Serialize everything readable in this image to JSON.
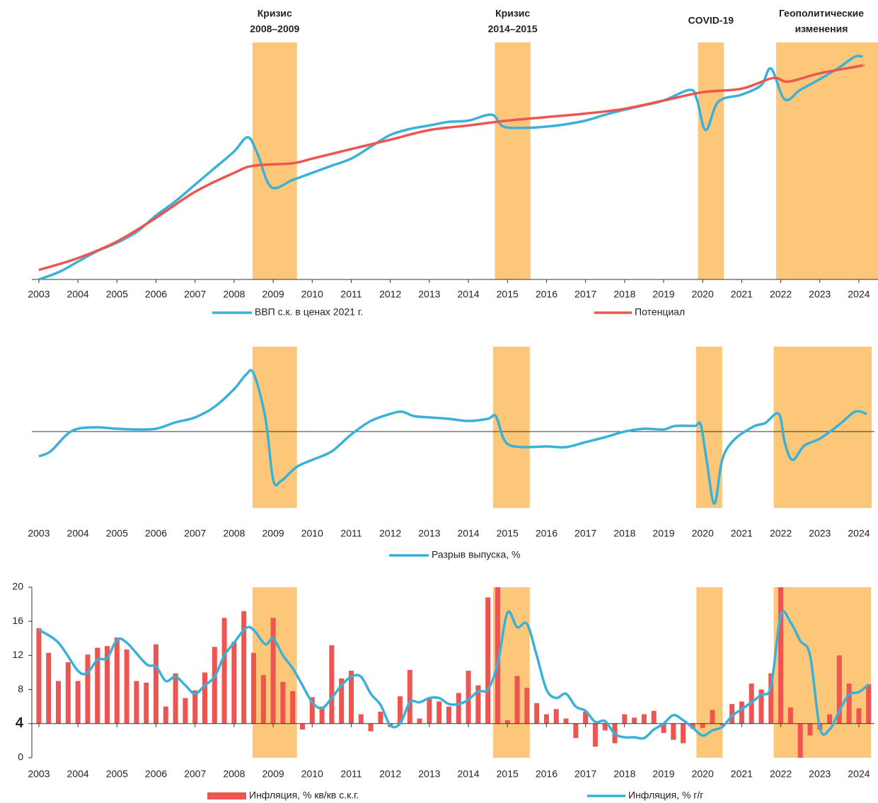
{
  "chart_data": [
    {
      "type": "line",
      "xlim": [
        2002.82,
        2024.49
      ],
      "xticks": [
        2003,
        2004,
        2005,
        2006,
        2007,
        2008,
        2009,
        2010,
        2011,
        2012,
        2013,
        2014,
        2015,
        2016,
        2017,
        2018,
        2019,
        2020,
        2021,
        2022,
        2023,
        2024
      ],
      "ylim": [
        0,
        100
      ],
      "bands": [
        {
          "label": [
            "Кризис",
            "2008–2009"
          ],
          "x": [
            2008.47,
            2009.61
          ]
        },
        {
          "label": [
            "Кризис",
            "2014–2015"
          ],
          "x": [
            2014.68,
            2015.59
          ]
        },
        {
          "label": [
            "COVID-19"
          ],
          "x": [
            2019.88,
            2020.54
          ]
        },
        {
          "label": [
            "Геополитические",
            "изменения"
          ],
          "x": [
            2021.88,
            2024.49
          ]
        }
      ],
      "band_color": "#fdc77a",
      "series": [
        {
          "name": "ВВП с.к. в ценах 2021 г.",
          "color": "#3ab1d8",
          "x": [
            2003,
            2003.5,
            2004,
            2004.5,
            2005,
            2005.5,
            2006,
            2006.5,
            2007,
            2007.5,
            2008,
            2008.35,
            2008.6,
            2008.95,
            2009.5,
            2010,
            2010.5,
            2011,
            2011.5,
            2012,
            2012.5,
            2013,
            2013.5,
            2014,
            2014.6,
            2014.9,
            2015.5,
            2016,
            2016.5,
            2017,
            2017.5,
            2018,
            2018.5,
            2019,
            2019.67,
            2019.85,
            2020.08,
            2020.4,
            2021,
            2021.5,
            2021.75,
            2022.1,
            2022.5,
            2023,
            2023.5,
            2023.9,
            2024.1
          ],
          "values": [
            0,
            3,
            7.5,
            12,
            15.5,
            20,
            27,
            33,
            40,
            47,
            54,
            60,
            53,
            39,
            42,
            45,
            48,
            51,
            56,
            61,
            63.5,
            65,
            66.5,
            67,
            69.5,
            64.5,
            64,
            64.5,
            65.5,
            67,
            69.5,
            71.6,
            73.5,
            75.5,
            80,
            76,
            63,
            75,
            78,
            82,
            89,
            76,
            80,
            84.5,
            89.5,
            94,
            94
          ]
        },
        {
          "name": "Потенциал",
          "color": "#ee5450",
          "x": [
            2003,
            2004,
            2005,
            2006,
            2007,
            2008,
            2008.5,
            2009.5,
            2010,
            2011,
            2012,
            2013,
            2014,
            2015,
            2016,
            2017,
            2018,
            2019,
            2020,
            2021,
            2021.8,
            2022.2,
            2023,
            2024,
            2024.1
          ],
          "values": [
            4,
            9,
            16,
            26,
            37,
            45,
            48,
            49,
            51,
            55,
            59,
            63,
            65,
            67,
            68.5,
            70,
            72,
            75.5,
            79,
            80.5,
            85,
            83.5,
            87,
            90,
            90.5
          ]
        }
      ],
      "legend": "bottom"
    },
    {
      "type": "line",
      "xlim": [
        2002.82,
        2024.49
      ],
      "xticks": [
        2003,
        2004,
        2005,
        2006,
        2007,
        2008,
        2009,
        2010,
        2011,
        2012,
        2013,
        2014,
        2015,
        2016,
        2017,
        2018,
        2019,
        2020,
        2021,
        2022,
        2023,
        2024
      ],
      "ylim": [
        -5.4,
        6
      ],
      "bands": [
        {
          "x": [
            2008.47,
            2009.61
          ]
        },
        {
          "x": [
            2014.63,
            2015.57
          ]
        },
        {
          "x": [
            2019.83,
            2020.5
          ]
        },
        {
          "x": [
            2021.82,
            2024.33
          ]
        }
      ],
      "band_color": "#fdc77a",
      "series": [
        {
          "name": "Разрыв выпуска, %",
          "color": "#3ab1d8",
          "x": [
            2003,
            2003.3,
            2003.7,
            2004,
            2004.5,
            2005,
            2005.5,
            2006,
            2006.5,
            2007,
            2007.5,
            2008,
            2008.3,
            2008.5,
            2008.8,
            2009,
            2009.2,
            2009.6,
            2010,
            2010.5,
            2011,
            2011.5,
            2012,
            2012.3,
            2012.6,
            2013,
            2013.5,
            2014,
            2014.5,
            2014.7,
            2014.9,
            2015.1,
            2015.5,
            2016,
            2016.5,
            2017,
            2017.5,
            2018,
            2018.5,
            2019,
            2019.3,
            2019.8,
            2019.95,
            2020.1,
            2020.3,
            2020.5,
            2020.8,
            2021.3,
            2021.6,
            2021.95,
            2022.1,
            2022.3,
            2022.6,
            2023,
            2023.5,
            2023.9,
            2024.2
          ],
          "values": [
            -1.75,
            -1.4,
            -0.25,
            0.2,
            0.3,
            0.2,
            0.15,
            0.2,
            0.65,
            1,
            1.75,
            3,
            4,
            4.1,
            1,
            -3.4,
            -3.5,
            -2.5,
            -2,
            -1.4,
            -0.2,
            0.75,
            1.25,
            1.4,
            1.1,
            1,
            0.9,
            0.75,
            0.9,
            1.1,
            -0.5,
            -1,
            -1.1,
            -1.05,
            -1.1,
            -0.75,
            -0.4,
            0,
            0.2,
            0.15,
            0.4,
            0.4,
            0.5,
            -2,
            -5.1,
            -2,
            -0.6,
            0.35,
            0.6,
            1.25,
            -0.75,
            -2,
            -1,
            -0.5,
            0.5,
            1.4,
            1.25
          ]
        }
      ],
      "zero_line": true,
      "legend": "bottom"
    },
    {
      "type": "combo",
      "xlim": [
        2002.82,
        2024.49
      ],
      "xticks": [
        2003,
        2004,
        2005,
        2006,
        2007,
        2008,
        2009,
        2010,
        2011,
        2012,
        2013,
        2014,
        2015,
        2016,
        2017,
        2018,
        2019,
        2020,
        2021,
        2022,
        2023,
        2024
      ],
      "ylim": [
        0,
        20
      ],
      "yticks": [
        0,
        4,
        8,
        12,
        16,
        20
      ],
      "baseline": 4,
      "bands": [
        {
          "x": [
            2008.47,
            2009.61
          ]
        },
        {
          "x": [
            2014.63,
            2015.57
          ]
        },
        {
          "x": [
            2019.84,
            2020.51
          ]
        },
        {
          "x": [
            2021.82,
            2024.31
          ]
        }
      ],
      "band_color": "#fdc77a",
      "series": [
        {
          "name": "Инфляция, % кв/кв с.к.г.",
          "color": "#ee5450",
          "type": "bar",
          "x": [
            2003,
            2003.25,
            2003.5,
            2003.75,
            2004,
            2004.25,
            2004.5,
            2004.75,
            2005,
            2005.25,
            2005.5,
            2005.75,
            2006,
            2006.25,
            2006.5,
            2006.75,
            2007,
            2007.25,
            2007.5,
            2007.75,
            2008,
            2008.25,
            2008.5,
            2008.75,
            2009,
            2009.25,
            2009.5,
            2009.75,
            2010,
            2010.25,
            2010.5,
            2010.75,
            2011,
            2011.25,
            2011.5,
            2011.75,
            2012,
            2012.25,
            2012.5,
            2012.75,
            2013,
            2013.25,
            2013.5,
            2013.75,
            2014,
            2014.25,
            2014.5,
            2014.75,
            2015,
            2015.25,
            2015.5,
            2015.75,
            2016,
            2016.25,
            2016.5,
            2016.75,
            2017,
            2017.25,
            2017.5,
            2017.75,
            2018,
            2018.25,
            2018.5,
            2018.75,
            2019,
            2019.25,
            2019.5,
            2019.75,
            2020,
            2020.25,
            2020.5,
            2020.75,
            2021,
            2021.25,
            2021.5,
            2021.75,
            2022,
            2022.25,
            2022.5,
            2022.75,
            2023,
            2023.25,
            2023.5,
            2023.75,
            2024,
            2024.25
          ],
          "values": [
            15.2,
            12.3,
            9.0,
            11.2,
            9.0,
            12.1,
            12.9,
            13.1,
            14.1,
            12.7,
            9.0,
            8.8,
            13.3,
            6.0,
            9.9,
            7.0,
            7.9,
            10.0,
            13.0,
            16.4,
            13.6,
            17.2,
            12.3,
            9.7,
            16.4,
            8.9,
            7.8,
            3.3,
            7.1,
            6.0,
            13.2,
            9.3,
            10.2,
            5.1,
            3.1,
            5.4,
            3.6,
            7.2,
            10.3,
            4.6,
            6.9,
            6.6,
            6.0,
            7.6,
            10.2,
            8.5,
            18.8,
            20.0,
            4.4,
            9.6,
            8.2,
            6.4,
            5.1,
            5.7,
            4.6,
            2.3,
            5.4,
            1.3,
            3.2,
            1.7,
            5.1,
            4.7,
            5.1,
            5.5,
            2.9,
            2.1,
            1.7,
            3.4,
            3.5,
            5.6,
            3.8,
            6.3,
            6.6,
            8.7,
            8.0,
            9.9,
            20.0,
            5.9,
            0.0,
            2.6,
            3.3,
            5.1,
            12.0,
            8.7,
            5.8,
            8.6
          ]
        },
        {
          "name": "Инфляция, % г/г",
          "color": "#3ab1d8",
          "type": "line",
          "x": [
            2003,
            2003.5,
            2004,
            2004.25,
            2004.5,
            2004.75,
            2005,
            2005.25,
            2005.75,
            2006,
            2006.25,
            2006.5,
            2006.75,
            2007,
            2007.25,
            2007.5,
            2007.75,
            2008,
            2008.3,
            2008.5,
            2008.8,
            2009,
            2009.25,
            2009.5,
            2009.75,
            2010,
            2010.25,
            2010.5,
            2010.75,
            2011,
            2011.25,
            2011.5,
            2011.75,
            2012,
            2012.25,
            2012.5,
            2012.75,
            2013,
            2013.25,
            2013.5,
            2013.75,
            2014,
            2014.25,
            2014.5,
            2014.75,
            2015,
            2015.25,
            2015.5,
            2015.75,
            2016,
            2016.25,
            2016.5,
            2016.75,
            2017,
            2017.25,
            2017.5,
            2017.75,
            2018,
            2018.25,
            2018.5,
            2018.75,
            2019,
            2019.25,
            2019.5,
            2019.75,
            2020,
            2020.25,
            2020.5,
            2020.75,
            2021,
            2021.25,
            2021.5,
            2021.75,
            2022,
            2022.25,
            2022.5,
            2022.75,
            2023,
            2023.25,
            2023.5,
            2023.75,
            2024,
            2024.25
          ],
          "values": [
            15,
            13.5,
            10.2,
            10,
            11.5,
            11.7,
            13.8,
            13.5,
            11,
            10.7,
            9,
            9.5,
            8.5,
            7.5,
            8.5,
            9.5,
            12,
            13.5,
            15.2,
            15,
            13.3,
            14,
            12,
            10.5,
            8.5,
            6.5,
            5.8,
            7,
            8.5,
            9.5,
            9.5,
            7.5,
            6.2,
            3.8,
            4,
            6.5,
            6.5,
            7,
            7,
            6.3,
            6.3,
            6.8,
            7.8,
            8,
            11,
            17,
            15.3,
            15.7,
            12,
            8,
            7,
            7.5,
            6,
            5.5,
            4.2,
            4.3,
            2.8,
            2.4,
            2.4,
            2.3,
            3.3,
            4,
            5,
            4.4,
            3.5,
            2.6,
            3.2,
            3.6,
            4.9,
            5.7,
            6.5,
            7.4,
            8.4,
            16.7,
            15.9,
            13.7,
            12,
            3.5,
            3.3,
            5.5,
            7.4,
            7.7,
            8.6
          ]
        }
      ],
      "legend": "bottom"
    }
  ]
}
